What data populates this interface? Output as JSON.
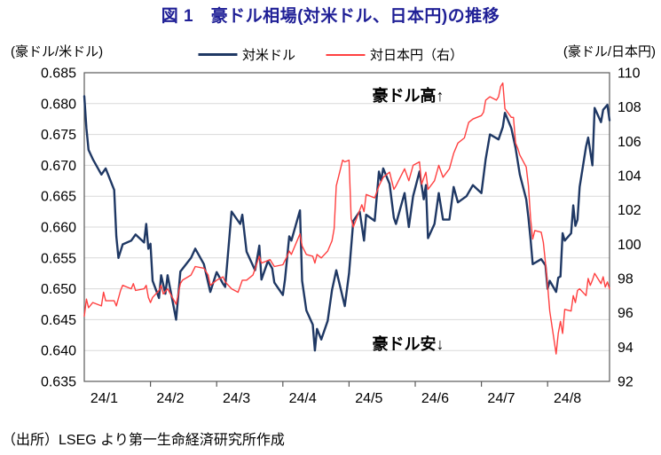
{
  "title": "図 1　豪ドル相場(対米ドル、日本円)の推移",
  "title_color": "#1f1f96",
  "axis_unit_left": "(豪ドル/米ドル)",
  "axis_unit_right": "(豪ドル/日本円)",
  "legend": [
    {
      "label": "対米ドル",
      "color": "#1F3864"
    },
    {
      "label": "対日本円（右）",
      "color": "#FF4040"
    }
  ],
  "annotations": {
    "high": "豪ドル高↑",
    "low": "豪ドル安↓"
  },
  "source": "（出所）LSEG より第一生命経済研究所作成",
  "chart_data": {
    "type": "line",
    "point_format": "[month(2024), day, value]",
    "grid": "horizontal, aligned to left axis ticks",
    "legend_position": "top",
    "grid_color": "#D9D9D9",
    "axis_color": "#595959",
    "x_axis": {
      "labels": [
        "24/1",
        "24/2",
        "24/3",
        "24/4",
        "24/5",
        "24/6",
        "24/7",
        "24/8"
      ],
      "span": "2024-01-01 to 2024-08-30"
    },
    "y_left": {
      "min": 0.635,
      "max": 0.685,
      "step": 0.005,
      "ticks": [
        "0.685",
        "0.680",
        "0.675",
        "0.670",
        "0.665",
        "0.660",
        "0.655",
        "0.650",
        "0.645",
        "0.640",
        "0.635"
      ]
    },
    "y_right": {
      "min": 92,
      "max": 110,
      "step": 2,
      "ticks": [
        "110",
        "108",
        "106",
        "104",
        "102",
        "100",
        "98",
        "96",
        "94",
        "92"
      ]
    },
    "series": [
      {
        "name": "対米ドル",
        "axis": "left",
        "color": "#1F3864",
        "points": [
          [
            1,
            1,
            0.6812
          ],
          [
            1,
            2,
            0.676
          ],
          [
            1,
            3,
            0.6725
          ],
          [
            1,
            5,
            0.671
          ],
          [
            1,
            9,
            0.6685
          ],
          [
            1,
            11,
            0.6695
          ],
          [
            1,
            15,
            0.666
          ],
          [
            1,
            16,
            0.6585
          ],
          [
            1,
            17,
            0.655
          ],
          [
            1,
            19,
            0.6572
          ],
          [
            1,
            23,
            0.6578
          ],
          [
            1,
            25,
            0.6588
          ],
          [
            1,
            29,
            0.6575
          ],
          [
            1,
            30,
            0.6605
          ],
          [
            1,
            31,
            0.6565
          ],
          [
            2,
            1,
            0.6573
          ],
          [
            2,
            2,
            0.6513
          ],
          [
            2,
            5,
            0.6485
          ],
          [
            2,
            6,
            0.6522
          ],
          [
            2,
            8,
            0.6492
          ],
          [
            2,
            9,
            0.6522
          ],
          [
            2,
            13,
            0.645
          ],
          [
            2,
            15,
            0.6528
          ],
          [
            2,
            20,
            0.655
          ],
          [
            2,
            22,
            0.6565
          ],
          [
            2,
            26,
            0.654
          ],
          [
            2,
            29,
            0.6495
          ],
          [
            3,
            1,
            0.6527
          ],
          [
            3,
            4,
            0.6508
          ],
          [
            3,
            5,
            0.6503
          ],
          [
            3,
            8,
            0.6625
          ],
          [
            3,
            12,
            0.6605
          ],
          [
            3,
            13,
            0.662
          ],
          [
            3,
            15,
            0.656
          ],
          [
            3,
            19,
            0.653
          ],
          [
            3,
            21,
            0.657
          ],
          [
            3,
            22,
            0.6515
          ],
          [
            3,
            25,
            0.6545
          ],
          [
            3,
            27,
            0.6533
          ],
          [
            3,
            28,
            0.651
          ],
          [
            4,
            1,
            0.649
          ],
          [
            4,
            2,
            0.6515
          ],
          [
            4,
            4,
            0.6585
          ],
          [
            4,
            5,
            0.6578
          ],
          [
            4,
            9,
            0.6627
          ],
          [
            4,
            10,
            0.6513
          ],
          [
            4,
            12,
            0.6465
          ],
          [
            4,
            15,
            0.6442
          ],
          [
            4,
            16,
            0.64
          ],
          [
            4,
            17,
            0.6435
          ],
          [
            4,
            19,
            0.6418
          ],
          [
            4,
            22,
            0.6448
          ],
          [
            4,
            24,
            0.6498
          ],
          [
            4,
            26,
            0.653
          ],
          [
            4,
            30,
            0.6472
          ],
          [
            5,
            1,
            0.6525
          ],
          [
            5,
            3,
            0.661
          ],
          [
            5,
            6,
            0.6625
          ],
          [
            5,
            8,
            0.6578
          ],
          [
            5,
            9,
            0.662
          ],
          [
            5,
            13,
            0.661
          ],
          [
            5,
            15,
            0.669
          ],
          [
            5,
            16,
            0.6675
          ],
          [
            5,
            17,
            0.6695
          ],
          [
            5,
            20,
            0.667
          ],
          [
            5,
            22,
            0.6615
          ],
          [
            5,
            23,
            0.6605
          ],
          [
            5,
            27,
            0.6655
          ],
          [
            5,
            29,
            0.66
          ],
          [
            5,
            31,
            0.665
          ],
          [
            6,
            3,
            0.669
          ],
          [
            6,
            5,
            0.6645
          ],
          [
            6,
            6,
            0.6668
          ],
          [
            6,
            7,
            0.6582
          ],
          [
            6,
            10,
            0.6605
          ],
          [
            6,
            12,
            0.6655
          ],
          [
            6,
            14,
            0.6612
          ],
          [
            6,
            17,
            0.6612
          ],
          [
            6,
            19,
            0.6665
          ],
          [
            6,
            21,
            0.664
          ],
          [
            6,
            25,
            0.665
          ],
          [
            6,
            28,
            0.6668
          ],
          [
            7,
            1,
            0.6655
          ],
          [
            7,
            3,
            0.671
          ],
          [
            7,
            5,
            0.675
          ],
          [
            7,
            9,
            0.6742
          ],
          [
            7,
            11,
            0.6762
          ],
          [
            7,
            12,
            0.6785
          ],
          [
            7,
            15,
            0.676
          ],
          [
            7,
            17,
            0.6728
          ],
          [
            7,
            19,
            0.6685
          ],
          [
            7,
            22,
            0.6645
          ],
          [
            7,
            23,
            0.6615
          ],
          [
            7,
            24,
            0.658
          ],
          [
            7,
            25,
            0.654
          ],
          [
            7,
            29,
            0.6548
          ],
          [
            7,
            31,
            0.6538
          ],
          [
            8,
            1,
            0.65
          ],
          [
            8,
            2,
            0.6513
          ],
          [
            8,
            5,
            0.6495
          ],
          [
            8,
            6,
            0.6518
          ],
          [
            8,
            7,
            0.652
          ],
          [
            8,
            8,
            0.659
          ],
          [
            8,
            9,
            0.6578
          ],
          [
            8,
            12,
            0.659
          ],
          [
            8,
            13,
            0.6635
          ],
          [
            8,
            14,
            0.6602
          ],
          [
            8,
            15,
            0.6612
          ],
          [
            8,
            16,
            0.6665
          ],
          [
            8,
            19,
            0.673
          ],
          [
            8,
            20,
            0.6745
          ],
          [
            8,
            22,
            0.67
          ],
          [
            8,
            23,
            0.6793
          ],
          [
            8,
            26,
            0.677
          ],
          [
            8,
            27,
            0.679
          ],
          [
            8,
            29,
            0.6798
          ],
          [
            8,
            30,
            0.6773
          ]
        ]
      },
      {
        "name": "対日本円（右）",
        "axis": "right",
        "color": "#FF4040",
        "points": [
          [
            1,
            1,
            95.8
          ],
          [
            1,
            2,
            96.8
          ],
          [
            1,
            3,
            96.3
          ],
          [
            1,
            5,
            96.6
          ],
          [
            1,
            9,
            96.4
          ],
          [
            1,
            10,
            97.2
          ],
          [
            1,
            11,
            96.7
          ],
          [
            1,
            15,
            96.7
          ],
          [
            1,
            16,
            96.4
          ],
          [
            1,
            18,
            97.3
          ],
          [
            1,
            19,
            97.6
          ],
          [
            1,
            23,
            97.4
          ],
          [
            1,
            24,
            97.7
          ],
          [
            1,
            25,
            97.3
          ],
          [
            1,
            29,
            97.4
          ],
          [
            1,
            30,
            97.6
          ],
          [
            1,
            31,
            96.9
          ],
          [
            2,
            1,
            96.6
          ],
          [
            2,
            2,
            96.9
          ],
          [
            2,
            5,
            97.3
          ],
          [
            2,
            6,
            97.6
          ],
          [
            2,
            7,
            97.1
          ],
          [
            2,
            9,
            97.4
          ],
          [
            2,
            13,
            96.5
          ],
          [
            2,
            15,
            97.7
          ],
          [
            2,
            16,
            97.9
          ],
          [
            2,
            20,
            98.2
          ],
          [
            2,
            22,
            98.7
          ],
          [
            2,
            26,
            98.6
          ],
          [
            2,
            28,
            98.2
          ],
          [
            2,
            29,
            97.6
          ],
          [
            3,
            1,
            97.9
          ],
          [
            3,
            4,
            98.1
          ],
          [
            3,
            5,
            97.8
          ],
          [
            3,
            8,
            97.4
          ],
          [
            3,
            11,
            97.2
          ],
          [
            3,
            13,
            97.9
          ],
          [
            3,
            15,
            97.9
          ],
          [
            3,
            18,
            98.2
          ],
          [
            3,
            21,
            99.3
          ],
          [
            3,
            22,
            98.9
          ],
          [
            3,
            26,
            99.1
          ],
          [
            3,
            28,
            98.7
          ],
          [
            4,
            1,
            98.8
          ],
          [
            4,
            3,
            99.3
          ],
          [
            4,
            4,
            99.6
          ],
          [
            4,
            5,
            99.4
          ],
          [
            4,
            9,
            100.6
          ],
          [
            4,
            10,
            99.9
          ],
          [
            4,
            12,
            99.4
          ],
          [
            4,
            15,
            99.3
          ],
          [
            4,
            16,
            98.9
          ],
          [
            4,
            17,
            99.4
          ],
          [
            4,
            19,
            99.2
          ],
          [
            4,
            22,
            99.6
          ],
          [
            4,
            24,
            100.2
          ],
          [
            4,
            25,
            100.9
          ],
          [
            4,
            26,
            103.4
          ],
          [
            4,
            29,
            104.9
          ],
          [
            4,
            30,
            104.8
          ],
          [
            5,
            1,
            104.9
          ],
          [
            5,
            2,
            101.5
          ],
          [
            5,
            3,
            101.0
          ],
          [
            5,
            7,
            102.3
          ],
          [
            5,
            8,
            101.9
          ],
          [
            5,
            9,
            102.9
          ],
          [
            5,
            13,
            102.7
          ],
          [
            5,
            15,
            103.4
          ],
          [
            5,
            17,
            103.9
          ],
          [
            5,
            20,
            104.2
          ],
          [
            5,
            22,
            103.2
          ],
          [
            5,
            23,
            103.4
          ],
          [
            5,
            27,
            104.4
          ],
          [
            5,
            29,
            103.7
          ],
          [
            5,
            31,
            104.6
          ],
          [
            6,
            3,
            104.8
          ],
          [
            6,
            4,
            103.5
          ],
          [
            6,
            6,
            104.2
          ],
          [
            6,
            7,
            103.2
          ],
          [
            6,
            10,
            103.7
          ],
          [
            6,
            12,
            104.6
          ],
          [
            6,
            14,
            103.9
          ],
          [
            6,
            17,
            104.4
          ],
          [
            6,
            19,
            105.3
          ],
          [
            6,
            21,
            105.9
          ],
          [
            6,
            24,
            106.2
          ],
          [
            6,
            26,
            107.1
          ],
          [
            6,
            28,
            107.3
          ],
          [
            7,
            1,
            107.5
          ],
          [
            7,
            2,
            107.7
          ],
          [
            7,
            3,
            108.4
          ],
          [
            7,
            5,
            108.6
          ],
          [
            7,
            8,
            108.4
          ],
          [
            7,
            9,
            108.6
          ],
          [
            7,
            10,
            109.2
          ],
          [
            7,
            11,
            109.4
          ],
          [
            7,
            12,
            107.9
          ],
          [
            7,
            15,
            107.4
          ],
          [
            7,
            16,
            107.4
          ],
          [
            7,
            17,
            105.9
          ],
          [
            7,
            18,
            105.6
          ],
          [
            7,
            19,
            105.2
          ],
          [
            7,
            22,
            104.5
          ],
          [
            7,
            23,
            103.4
          ],
          [
            7,
            24,
            101.5
          ],
          [
            7,
            25,
            100.3
          ],
          [
            7,
            26,
            100.8
          ],
          [
            7,
            29,
            100.7
          ],
          [
            7,
            30,
            100.1
          ],
          [
            7,
            31,
            98.9
          ],
          [
            8,
            1,
            97.6
          ],
          [
            8,
            2,
            96.1
          ],
          [
            8,
            5,
            93.6
          ],
          [
            8,
            6,
            94.8
          ],
          [
            8,
            7,
            95.5
          ],
          [
            8,
            8,
            94.8
          ],
          [
            8,
            9,
            96.2
          ],
          [
            8,
            12,
            96.1
          ],
          [
            8,
            13,
            97.0
          ],
          [
            8,
            14,
            96.6
          ],
          [
            8,
            15,
            97.3
          ],
          [
            8,
            16,
            97.4
          ],
          [
            8,
            19,
            97.0
          ],
          [
            8,
            20,
            98.0
          ],
          [
            8,
            21,
            97.6
          ],
          [
            8,
            22,
            97.9
          ],
          [
            8,
            23,
            98.3
          ],
          [
            8,
            26,
            97.7
          ],
          [
            8,
            27,
            98.1
          ],
          [
            8,
            28,
            97.5
          ],
          [
            8,
            29,
            97.8
          ],
          [
            8,
            30,
            97.4
          ]
        ]
      }
    ]
  }
}
